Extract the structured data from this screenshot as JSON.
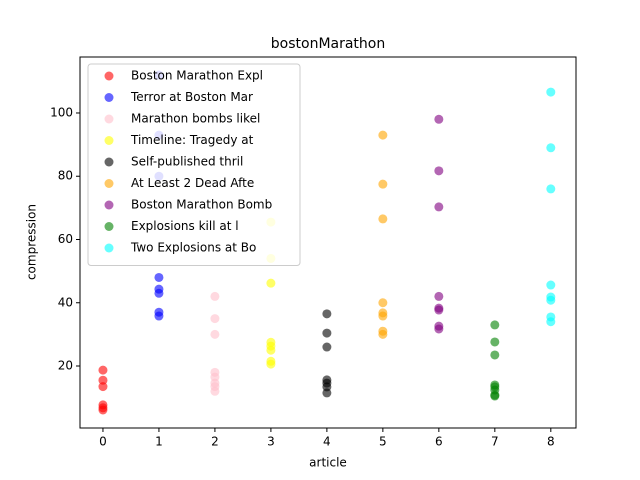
{
  "chart_data": {
    "type": "scatter",
    "title": "bostonMarathon",
    "x_label": "article",
    "y_label": "compression",
    "xlim": [
      -0.41,
      8.45
    ],
    "ylim": [
      0.4,
      117.7
    ],
    "xticks": [
      0,
      1,
      2,
      3,
      4,
      5,
      6,
      7,
      8
    ],
    "yticks": [
      20,
      40,
      60,
      80,
      100
    ],
    "legend": "upper left",
    "series": [
      {
        "name": "Boston Marathon Expl",
        "color": "red",
        "x": [
          0,
          0,
          0,
          0,
          0,
          0
        ],
        "values": [
          18.7,
          15.5,
          13.5,
          7.7,
          6.8,
          6.1
        ]
      },
      {
        "name": "Terror at Boston Mar",
        "color": "blue",
        "x": [
          1,
          1,
          1,
          1,
          1,
          1,
          1,
          1
        ],
        "values": [
          112,
          93,
          80,
          48,
          44.3,
          43,
          37,
          35.8
        ]
      },
      {
        "name": "Marathon bombs likel",
        "color": "pink",
        "x": [
          2,
          2,
          2,
          2,
          2,
          2,
          2,
          2
        ],
        "values": [
          42,
          35,
          30,
          18,
          16.5,
          14.6,
          13.5,
          12
        ]
      },
      {
        "name": "Timeline: Tragedy at",
        "color": "yellow",
        "x": [
          3,
          3,
          3,
          3,
          3,
          3,
          3,
          3
        ],
        "values": [
          65.5,
          54,
          46.2,
          27.5,
          26.3,
          25,
          21.5,
          20.6
        ]
      },
      {
        "name": "Self-published thril",
        "color": "black",
        "x": [
          4,
          4,
          4,
          4,
          4,
          4,
          4
        ],
        "values": [
          36.5,
          30.4,
          26,
          15.6,
          14.6,
          13.4,
          11.5
        ]
      },
      {
        "name": "At Least 2 Dead Afte",
        "color": "orange",
        "x": [
          5,
          5,
          5,
          5,
          5,
          5,
          5,
          5
        ],
        "values": [
          93,
          77.5,
          66.5,
          40,
          36.8,
          35.8,
          31,
          30
        ]
      },
      {
        "name": "Boston Marathon Bomb",
        "color": "purple",
        "x": [
          6,
          6,
          6,
          6,
          6,
          6,
          6,
          6
        ],
        "values": [
          98,
          81.7,
          70.3,
          42,
          38.3,
          37.7,
          32.6,
          31.7
        ]
      },
      {
        "name": "Explosions kill at l",
        "color": "green",
        "x": [
          7,
          7,
          7,
          7,
          7,
          7,
          7,
          7
        ],
        "values": [
          33,
          27.6,
          23.5,
          14,
          13.4,
          12.4,
          10.8,
          10.5
        ]
      },
      {
        "name": "Two Explosions at Bo",
        "color": "cyan",
        "x": [
          8,
          8,
          8,
          8,
          8,
          8,
          8,
          8
        ],
        "values": [
          106.6,
          89,
          76,
          45.6,
          41.8,
          40.8,
          35.5,
          34
        ]
      }
    ]
  }
}
